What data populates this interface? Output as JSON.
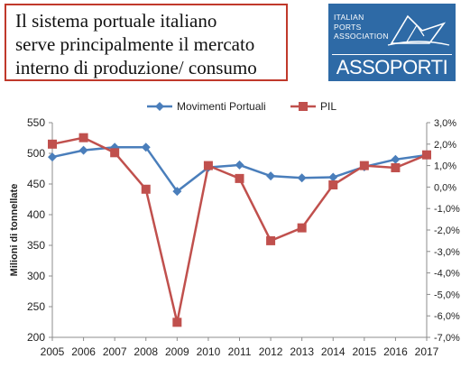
{
  "title": {
    "lines": [
      "Il sistema portuale italiano",
      "serve principalmente il mercato",
      "interno di produzione/ consumo"
    ]
  },
  "logo": {
    "org_lines": [
      "ITALIAN",
      "PORTS",
      "ASSOCIATION"
    ],
    "brand": "ASSOPORTI"
  },
  "colors": {
    "movimenti": "#4a7ebb",
    "pil": "#c0504d",
    "title_border": "#c0392b",
    "logo_bg": "#2e6aa6"
  },
  "chart_data": {
    "type": "line",
    "categories": [
      "2005",
      "2006",
      "2007",
      "2008",
      "2009",
      "2010",
      "2011",
      "2012",
      "2013",
      "2014",
      "2015",
      "2016",
      "2017"
    ],
    "series": [
      {
        "name": "Movimenti Portuali",
        "axis": "left",
        "marker": "diamond",
        "values": [
          494,
          505,
          510,
          510,
          438,
          477,
          481,
          463,
          460,
          461,
          478,
          490,
          497
        ]
      },
      {
        "name": "PIL",
        "axis": "right",
        "marker": "square",
        "values": [
          2.0,
          2.3,
          1.6,
          -0.1,
          -6.3,
          1.0,
          0.4,
          -2.5,
          -1.9,
          0.1,
          1.0,
          0.9,
          1.5
        ]
      }
    ],
    "ylabel": "Milioni di tonnellate",
    "ylim": [
      200,
      550
    ],
    "y_ticks": [
      "550",
      "500",
      "450",
      "400",
      "350",
      "300",
      "250",
      "200"
    ],
    "y2lim": [
      -7.0,
      3.0
    ],
    "y2_ticks": [
      "3,0%",
      "2,0%",
      "1,0%",
      "0,0%",
      "-1,0%",
      "-2,0%",
      "-3,0%",
      "-4,0%",
      "-5,0%",
      "-6,0%",
      "-7,0%"
    ],
    "legend_position": "top",
    "grid": false
  }
}
